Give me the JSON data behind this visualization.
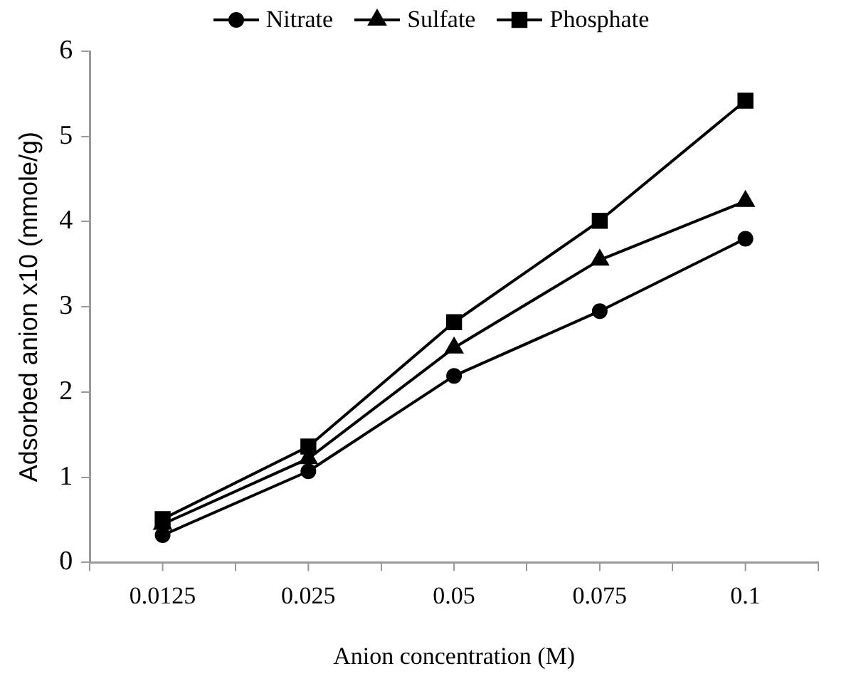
{
  "chart_data": {
    "type": "line",
    "xlabel": "Anion concentration (M)",
    "ylabel": "Adsorbed anion x10 (mmole/g)",
    "categories": [
      "0.0125",
      "0.025",
      "0.05",
      "0.075",
      "0.1"
    ],
    "ylim": [
      0,
      6
    ],
    "yticks": [
      0,
      1,
      2,
      3,
      4,
      5,
      6
    ],
    "grid": false,
    "legend": "top",
    "line_style": "solid",
    "series": [
      {
        "name": "Nitrate",
        "color": "#000000",
        "marker": "circle",
        "values": [
          0.32,
          1.07,
          2.19,
          2.95,
          3.8
        ]
      },
      {
        "name": "Sulfate",
        "color": "#000000",
        "marker": "triangle",
        "values": [
          0.45,
          1.22,
          2.52,
          3.55,
          4.24
        ]
      },
      {
        "name": "Phosphate",
        "color": "#000000",
        "marker": "square",
        "values": [
          0.51,
          1.36,
          2.82,
          4.01,
          5.42
        ]
      }
    ]
  }
}
